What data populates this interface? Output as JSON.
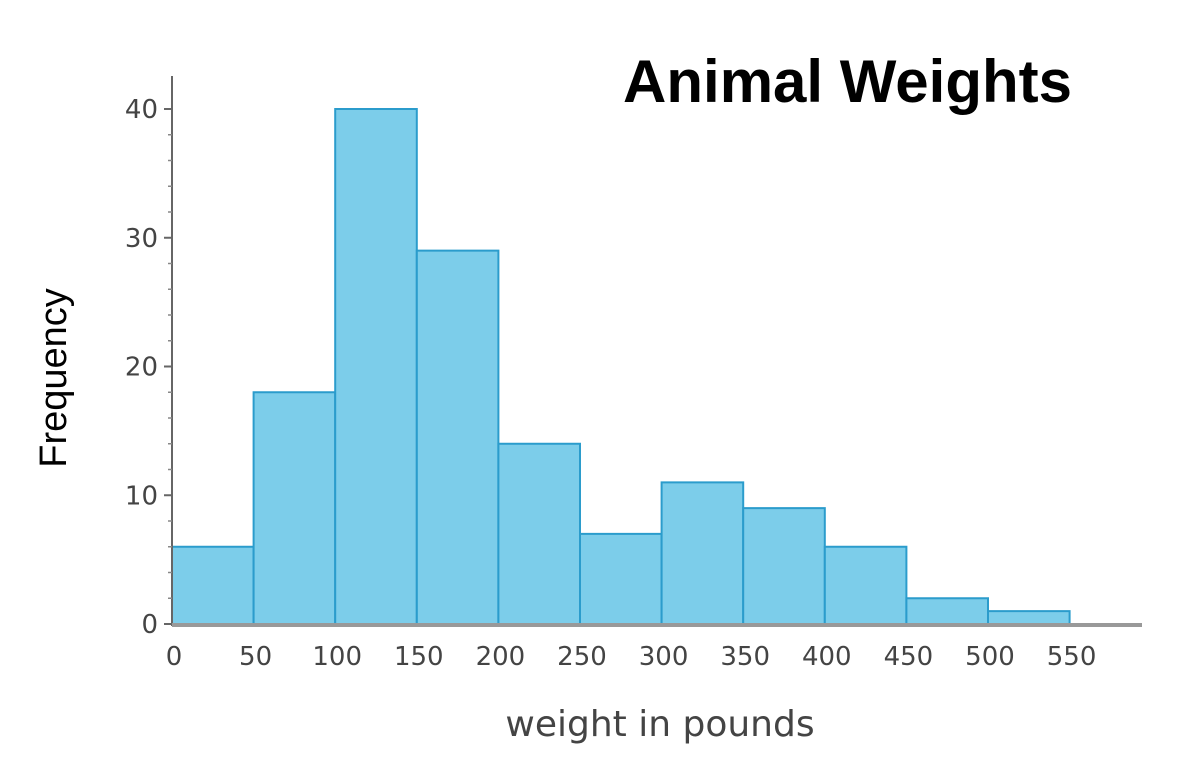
{
  "chart_data": {
    "type": "bar",
    "title": "Animal Weights",
    "xlabel": "weight in pounds",
    "ylabel": "Frequency",
    "bins": [
      {
        "start": 0,
        "end": 50,
        "value": 6
      },
      {
        "start": 50,
        "end": 100,
        "value": 18
      },
      {
        "start": 100,
        "end": 150,
        "value": 40
      },
      {
        "start": 150,
        "end": 200,
        "value": 29
      },
      {
        "start": 200,
        "end": 250,
        "value": 14
      },
      {
        "start": 250,
        "end": 300,
        "value": 7
      },
      {
        "start": 300,
        "end": 350,
        "value": 11
      },
      {
        "start": 350,
        "end": 400,
        "value": 9
      },
      {
        "start": 400,
        "end": 450,
        "value": 6
      },
      {
        "start": 450,
        "end": 500,
        "value": 2
      },
      {
        "start": 500,
        "end": 550,
        "value": 1
      }
    ],
    "xticks": [
      "0",
      "50",
      "100",
      "150",
      "200",
      "250",
      "300",
      "350",
      "400",
      "450",
      "500",
      "550"
    ],
    "yticks": [
      "0",
      "10",
      "20",
      "30",
      "40"
    ],
    "xlim": [
      0,
      590
    ],
    "ylim": [
      0,
      42
    ],
    "grid": false,
    "colors": {
      "bar_fill": "#7ccdea",
      "bar_stroke": "#2b9ccc",
      "axis": "#999999"
    }
  }
}
